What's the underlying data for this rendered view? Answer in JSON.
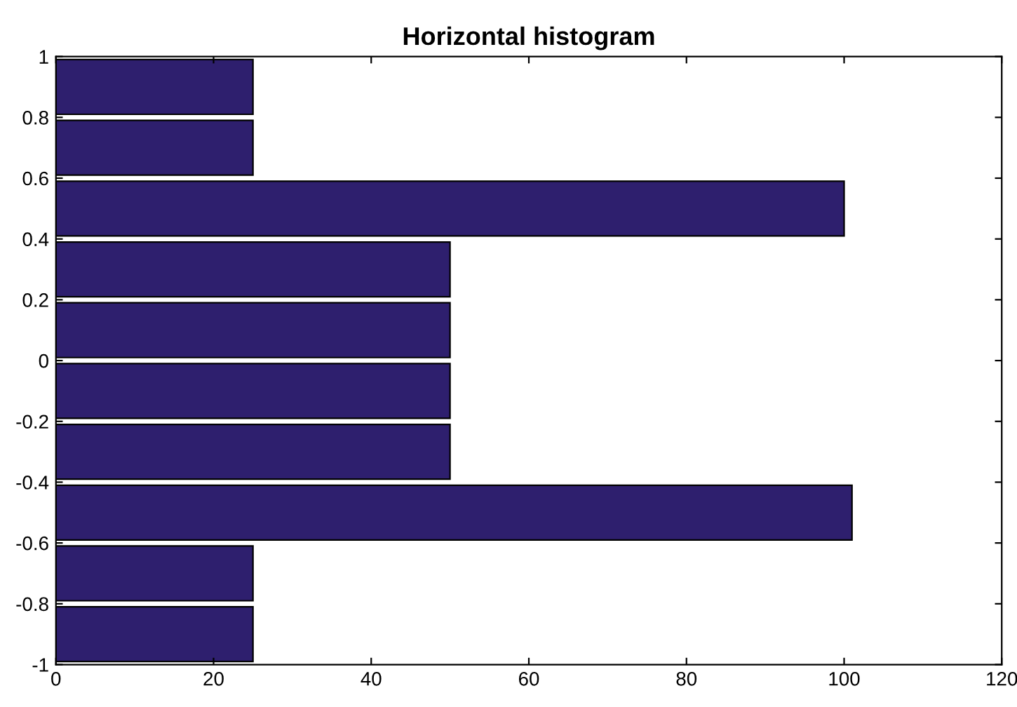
{
  "chart_data": {
    "type": "histogram",
    "title": "Horizontal histogram",
    "orientation": "horizontal",
    "bins": [
      -1,
      -0.8,
      -0.6,
      -0.4,
      -0.2,
      0,
      0.2,
      0.4,
      0.6,
      0.8,
      1
    ],
    "values": [
      25,
      25,
      101,
      50,
      50,
      50,
      50,
      100,
      25,
      25
    ],
    "color": "#2e1f6e",
    "xlim": [
      0,
      120
    ],
    "xticks": [
      0,
      20,
      40,
      60,
      80,
      100,
      120
    ],
    "ylim": [
      -1,
      1
    ],
    "yticks": [
      -1,
      -0.8,
      -0.6,
      -0.4,
      -0.2,
      0,
      0.2,
      0.4,
      0.6,
      0.8,
      1
    ],
    "grid": false
  }
}
